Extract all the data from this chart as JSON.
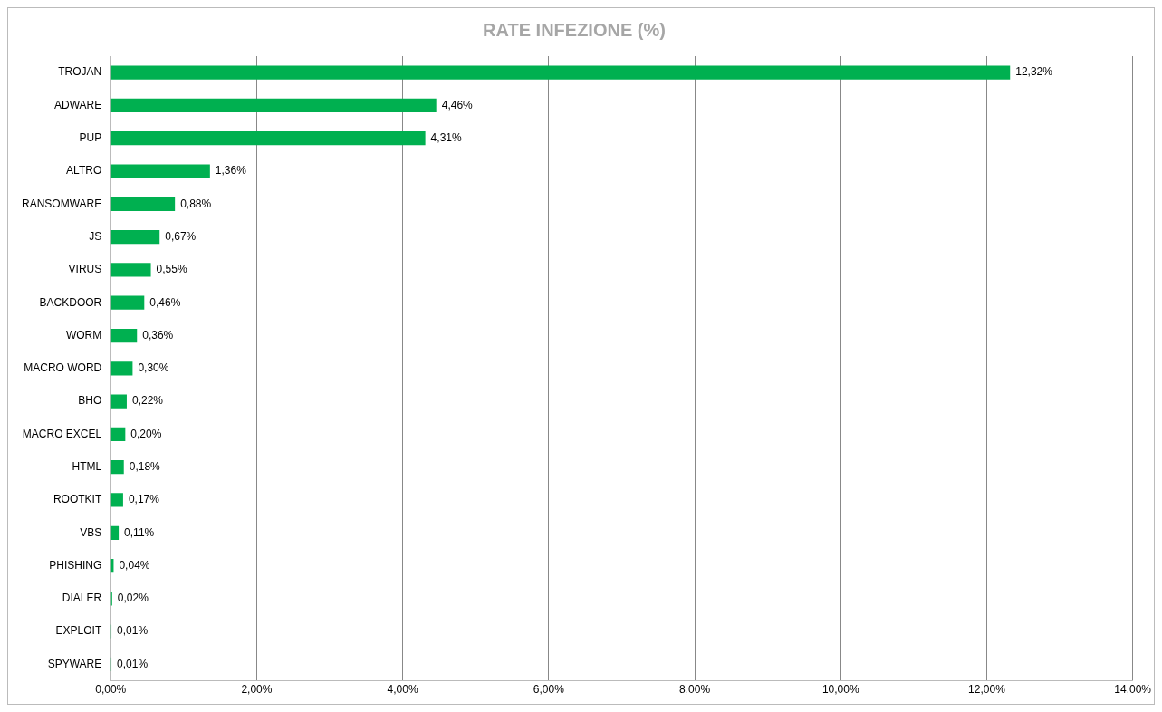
{
  "chart_data": {
    "type": "bar",
    "orientation": "horizontal",
    "title": "RATE INFEZIONE (%)",
    "categories": [
      "TROJAN",
      "ADWARE",
      "PUP",
      "ALTRO",
      "RANSOMWARE",
      "JS",
      "VIRUS",
      "BACKDOOR",
      "WORM",
      "MACRO WORD",
      "BHO",
      "MACRO EXCEL",
      "HTML",
      "ROOTKIT",
      "VBS",
      "PHISHING",
      "DIALER",
      "EXPLOIT",
      "SPYWARE"
    ],
    "values": [
      12.32,
      4.46,
      4.31,
      1.36,
      0.88,
      0.67,
      0.55,
      0.46,
      0.36,
      0.3,
      0.22,
      0.2,
      0.18,
      0.17,
      0.11,
      0.04,
      0.02,
      0.01,
      0.01
    ],
    "value_labels": [
      "12,32%",
      "4,46%",
      "4,31%",
      "1,36%",
      "0,88%",
      "0,67%",
      "0,55%",
      "0,46%",
      "0,36%",
      "0,30%",
      "0,22%",
      "0,20%",
      "0,18%",
      "0,17%",
      "0,11%",
      "0,04%",
      "0,02%",
      "0,01%",
      "0,01%"
    ],
    "color": "#00b050",
    "xlim": [
      0,
      14
    ],
    "xticks": [
      {
        "value": 0,
        "label": "0,00%"
      },
      {
        "value": 2,
        "label": "2,00%"
      },
      {
        "value": 4,
        "label": "4,00%"
      },
      {
        "value": 6,
        "label": "6,00%"
      },
      {
        "value": 8,
        "label": "8,00%"
      },
      {
        "value": 10,
        "label": "10,00%"
      },
      {
        "value": 12,
        "label": "12,00%"
      },
      {
        "value": 14,
        "label": "14,00%"
      }
    ],
    "grid": "x"
  }
}
